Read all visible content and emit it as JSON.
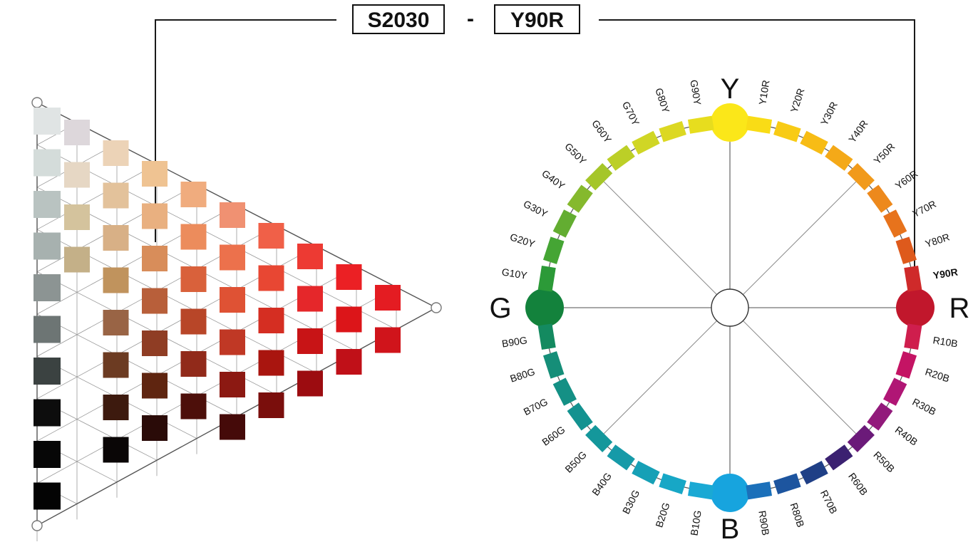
{
  "header": {
    "nuance_code": "S2030",
    "separator": "-",
    "hue_code": "Y90R"
  },
  "triangle": {
    "grey_column": [
      "#e0e4e4",
      "#d4dcda",
      "#b9c3c1",
      "#a7b1af",
      "#8c9493",
      "#6d7574",
      "#3b4241",
      "#0d0d0d",
      "#070707",
      "#040404"
    ],
    "columns": [
      [
        "#ddd7db",
        "#e6d7c4",
        "#d4c39d",
        "#c4b088"
      ],
      [
        "#ecd3b7",
        "#e3c29b",
        "#d8b086",
        "#c0935d",
        "#996445",
        "#6c3b22",
        "#3d1a0e",
        "#0a0606"
      ],
      [
        "#efc392",
        "#e9b080",
        "#d88d5a",
        "#b85f3a",
        "#8f3d24",
        "#5f2510",
        "#2a0b08"
      ],
      [
        "#f0ac7e",
        "#ec8c5c",
        "#d9613b",
        "#b84628",
        "#912a1a",
        "#4d0f0a"
      ],
      [
        "#f09172",
        "#ec714c",
        "#df5234",
        "#c03825",
        "#8c1912",
        "#450a09"
      ],
      [
        "#f06048",
        "#e84733",
        "#d52e22",
        "#a9150f",
        "#7a0e0c"
      ],
      [
        "#ed3a33",
        "#e5272a",
        "#c81416",
        "#9c0c10"
      ],
      [
        "#eb2024",
        "#dc1519",
        "#c01018"
      ],
      [
        "#e41c22",
        "#d0141b"
      ]
    ]
  },
  "hue_circle": {
    "primaries": [
      {
        "label": "Y",
        "color": "#fbe719"
      },
      {
        "label": "R",
        "color": "#c1172c"
      },
      {
        "label": "B",
        "color": "#17a4de"
      },
      {
        "label": "G",
        "color": "#13823c"
      }
    ],
    "hues": [
      {
        "label": "Y10R",
        "color": "#f9dc16"
      },
      {
        "label": "Y20R",
        "color": "#f8cb15"
      },
      {
        "label": "Y30R",
        "color": "#f7bc15"
      },
      {
        "label": "Y40R",
        "color": "#f4a918"
      },
      {
        "label": "Y50R",
        "color": "#f19a1b"
      },
      {
        "label": "Y60R",
        "color": "#ed891c"
      },
      {
        "label": "Y70R",
        "color": "#e7731c"
      },
      {
        "label": "Y80R",
        "color": "#de5a1c"
      },
      {
        "label": "Y90R",
        "color": "#cf2a2a"
      },
      {
        "label": "R10B",
        "color": "#cf1e4d"
      },
      {
        "label": "R20B",
        "color": "#c41464"
      },
      {
        "label": "R30B",
        "color": "#b01675"
      },
      {
        "label": "R40B",
        "color": "#921a7b"
      },
      {
        "label": "R50B",
        "color": "#6b1a79"
      },
      {
        "label": "R60B",
        "color": "#3b2171"
      },
      {
        "label": "R70B",
        "color": "#1f3f86"
      },
      {
        "label": "R80B",
        "color": "#1d559f"
      },
      {
        "label": "R90B",
        "color": "#1b70ba"
      },
      {
        "label": "B10G",
        "color": "#1aa9d4"
      },
      {
        "label": "B20G",
        "color": "#17a7c6"
      },
      {
        "label": "B30G",
        "color": "#16a0b6"
      },
      {
        "label": "B40G",
        "color": "#169aa8"
      },
      {
        "label": "B50G",
        "color": "#14979b"
      },
      {
        "label": "B60G",
        "color": "#139290"
      },
      {
        "label": "B70G",
        "color": "#149085"
      },
      {
        "label": "B80G",
        "color": "#158e78"
      },
      {
        "label": "B90G",
        "color": "#148a60"
      },
      {
        "label": "G10Y",
        "color": "#2c9a38"
      },
      {
        "label": "G20Y",
        "color": "#45a534"
      },
      {
        "label": "G30Y",
        "color": "#63ad31"
      },
      {
        "label": "G40Y",
        "color": "#85b92d"
      },
      {
        "label": "G50Y",
        "color": "#a5c629"
      },
      {
        "label": "G60Y",
        "color": "#bccf27"
      },
      {
        "label": "G70Y",
        "color": "#d0d625"
      },
      {
        "label": "G80Y",
        "color": "#dcd822"
      },
      {
        "label": "G90Y",
        "color": "#e7dd1e"
      }
    ],
    "selected_hue": "Y90R"
  },
  "colors": {
    "line": "#1a1a1a",
    "grid": "#9a9a9a",
    "spoke": "#8a8a8a"
  }
}
